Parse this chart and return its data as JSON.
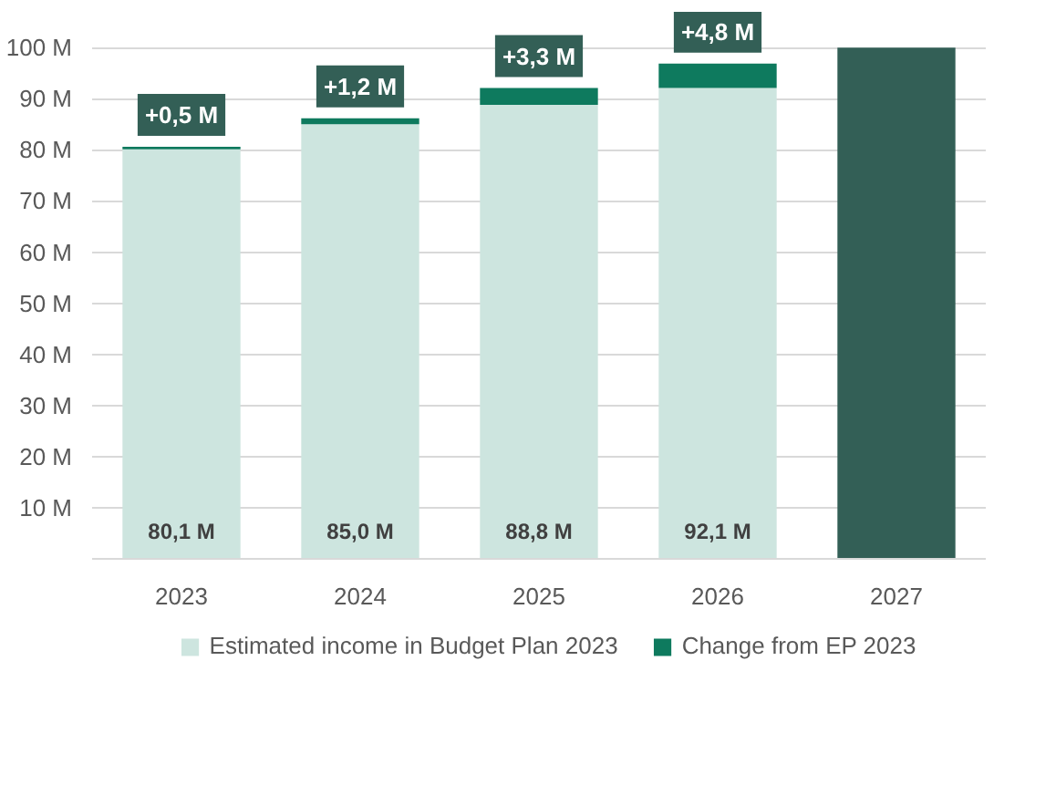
{
  "chart_data": {
    "type": "bar",
    "stacked": true,
    "categories": [
      "2023",
      "2024",
      "2025",
      "2026",
      "2027"
    ],
    "ylim": [
      0,
      100
    ],
    "yticks": [
      {
        "value": 10,
        "label": "10 M"
      },
      {
        "value": 20,
        "label": "20 M"
      },
      {
        "value": 30,
        "label": "30 M"
      },
      {
        "value": 40,
        "label": "40 M"
      },
      {
        "value": 50,
        "label": "50 M"
      },
      {
        "value": 60,
        "label": "60 M"
      },
      {
        "value": 70,
        "label": "70 M"
      },
      {
        "value": 80,
        "label": "80 M"
      },
      {
        "value": 90,
        "label": "90 M"
      },
      {
        "value": 100,
        "label": "100 M"
      }
    ],
    "grid": "y",
    "legend": "bottom",
    "series": [
      {
        "name": "Estimated income in Budget Plan 2023",
        "color": "#cde5df",
        "colors": [
          "#cde5df",
          "#cde5df",
          "#cde5df",
          "#cde5df",
          "#335f56"
        ],
        "values": [
          80.1,
          85.0,
          88.8,
          92.1,
          100
        ],
        "value_labels": [
          "80,1 M",
          "85,0 M",
          "88,8 M",
          "92,1 M",
          null
        ]
      },
      {
        "name": "Change from EP 2023",
        "color": "#0e7a5e",
        "values": [
          0.5,
          1.2,
          3.3,
          4.8,
          null
        ],
        "value_labels": [
          "+0,5 M",
          "+1,2 M",
          "+3,3 M",
          "+4,8 M",
          null
        ]
      }
    ]
  }
}
